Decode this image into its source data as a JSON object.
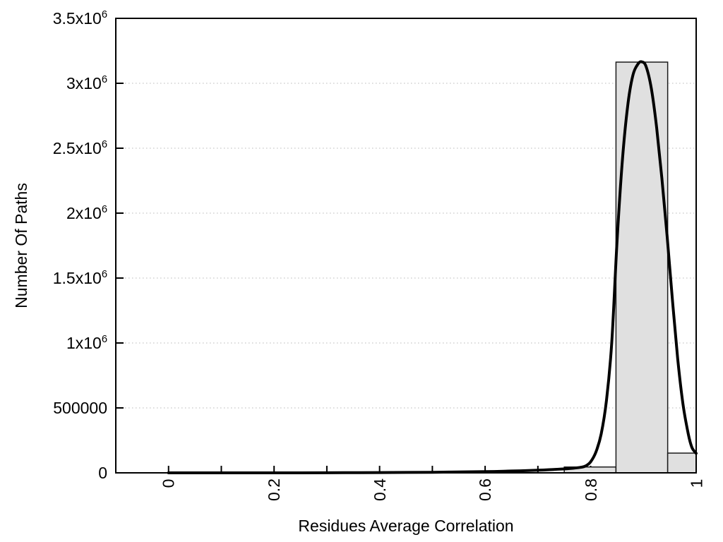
{
  "chart_data": {
    "type": "bar",
    "subtype": "histogram-with-fit-curve",
    "title": "",
    "xlabel": "Residues Average Correlation",
    "ylabel": "Number Of Paths",
    "xlim": [
      -0.1,
      1.0
    ],
    "ylim": [
      0,
      3500000
    ],
    "grid": "horizontal-dotted-at-major-y-ticks",
    "legend": "none",
    "x_axis": {
      "tick_positions": [
        0,
        0.1,
        0.2,
        0.3,
        0.4,
        0.5,
        0.6,
        0.7,
        0.8,
        0.9
      ],
      "major_ticks": [
        {
          "v": 0,
          "label": "0"
        },
        {
          "v": 0.2,
          "label": "0.2"
        },
        {
          "v": 0.4,
          "label": "0.4"
        },
        {
          "v": 0.6,
          "label": "0.6"
        },
        {
          "v": 0.8,
          "label": "0.8"
        },
        {
          "v": 1,
          "label": "1"
        }
      ],
      "tick_label_rotation_deg": -90
    },
    "y_axis": {
      "ticks": [
        {
          "v": 0,
          "label": "0"
        },
        {
          "v": 500000,
          "label": "500000"
        },
        {
          "v": 1000000,
          "label": "1x10^6"
        },
        {
          "v": 1500000,
          "label": "1.5x10^6"
        },
        {
          "v": 2000000,
          "label": "2x10^6"
        },
        {
          "v": 2500000,
          "label": "2.5x10^6"
        },
        {
          "v": 3000000,
          "label": "3x10^6"
        },
        {
          "v": 3500000,
          "label": "3.5x10^6"
        }
      ]
    },
    "bars": [
      {
        "x_from": 0.75,
        "x_to": 0.848,
        "value": 45000
      },
      {
        "x_from": 0.848,
        "x_to": 0.946,
        "value": 3163000
      },
      {
        "x_from": 0.946,
        "x_to": 1.0,
        "value": 152000
      }
    ],
    "curve_points": [
      [
        0.0,
        0
      ],
      [
        0.1,
        0
      ],
      [
        0.2,
        0
      ],
      [
        0.3,
        800
      ],
      [
        0.4,
        2000
      ],
      [
        0.5,
        4500
      ],
      [
        0.6,
        9500
      ],
      [
        0.65,
        14000
      ],
      [
        0.7,
        20000
      ],
      [
        0.73,
        26000
      ],
      [
        0.76,
        33000
      ],
      [
        0.78,
        42000
      ],
      [
        0.79,
        52000
      ],
      [
        0.8,
        85000
      ],
      [
        0.81,
        160000
      ],
      [
        0.82,
        300000
      ],
      [
        0.83,
        560000
      ],
      [
        0.84,
        1000000
      ],
      [
        0.85,
        1780000
      ],
      [
        0.86,
        2400000
      ],
      [
        0.87,
        2820000
      ],
      [
        0.88,
        3060000
      ],
      [
        0.89,
        3150000
      ],
      [
        0.897,
        3165000
      ],
      [
        0.905,
        3130000
      ],
      [
        0.915,
        2960000
      ],
      [
        0.925,
        2660000
      ],
      [
        0.935,
        2270000
      ],
      [
        0.945,
        1820000
      ],
      [
        0.955,
        1330000
      ],
      [
        0.965,
        880000
      ],
      [
        0.975,
        530000
      ],
      [
        0.985,
        300000
      ],
      [
        0.992,
        195000
      ],
      [
        1.0,
        150000
      ]
    ],
    "colors": {
      "background": "#ffffff",
      "bar_fill": "#e0e0e0",
      "bar_stroke": "#1a1a1a",
      "curve": "#000000",
      "grid": "#b8b8b8",
      "axis": "#000000",
      "text": "#000000"
    }
  }
}
